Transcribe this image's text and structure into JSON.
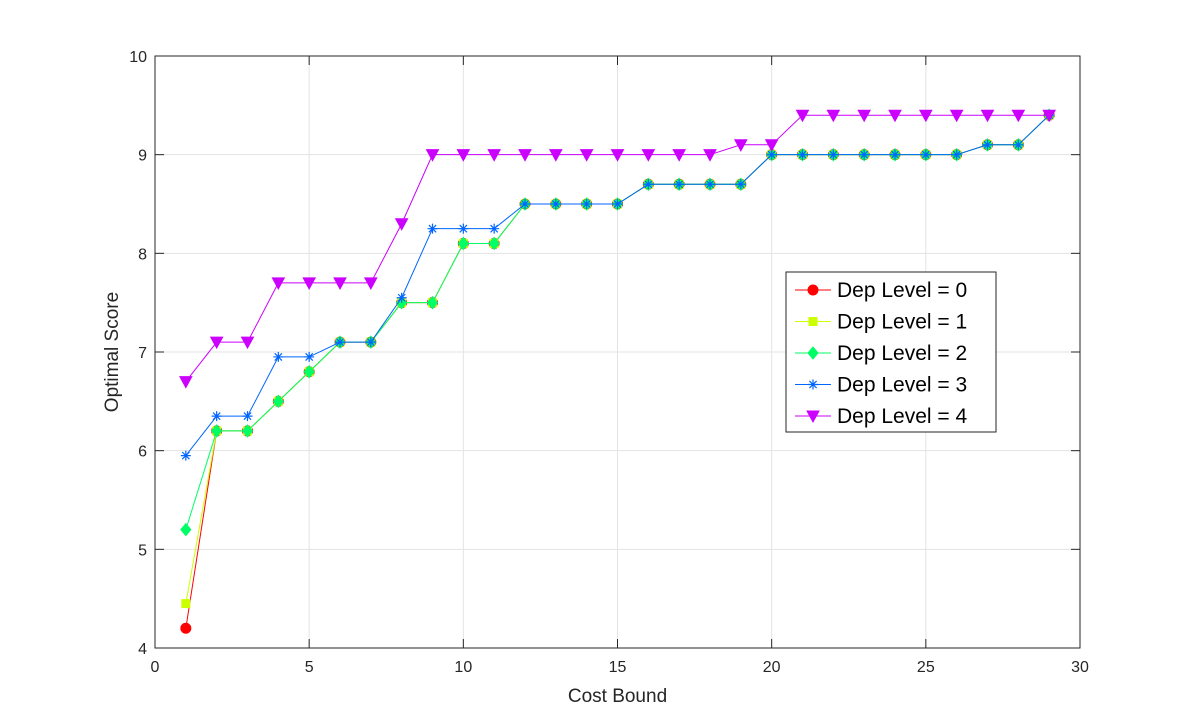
{
  "chart_data": {
    "type": "line",
    "xlabel": "Cost Bound",
    "ylabel": "Optimal Score",
    "xlim": [
      0,
      30
    ],
    "ylim": [
      4,
      10
    ],
    "xticks": [
      0,
      5,
      10,
      15,
      20,
      25,
      30
    ],
    "yticks": [
      4,
      5,
      6,
      7,
      8,
      9,
      10
    ],
    "xtick_labels": [
      "0",
      "5",
      "10",
      "15",
      "20",
      "25",
      "30"
    ],
    "ytick_labels": [
      "4",
      "5",
      "6",
      "7",
      "8",
      "9",
      "10"
    ],
    "grid": true,
    "legend_position": "right-center",
    "x": [
      1,
      2,
      3,
      4,
      5,
      6,
      7,
      8,
      9,
      10,
      11,
      12,
      13,
      14,
      15,
      16,
      17,
      18,
      19,
      20,
      21,
      22,
      23,
      24,
      25,
      26,
      27,
      28,
      29
    ],
    "series": [
      {
        "name": "Dep Level  = 0",
        "color": "#ff0000",
        "marker": "circle",
        "values": [
          4.2,
          6.2,
          6.2,
          6.5,
          6.8,
          7.1,
          7.1,
          7.5,
          7.5,
          8.1,
          8.1,
          8.5,
          8.5,
          8.5,
          8.5,
          8.7,
          8.7,
          8.7,
          8.7,
          9.0,
          9.0,
          9.0,
          9.0,
          9.0,
          9.0,
          9.0,
          9.1,
          9.1,
          9.4
        ]
      },
      {
        "name": "Dep Level  = 1",
        "color": "#ccff00",
        "marker": "square",
        "values": [
          4.45,
          6.2,
          6.2,
          6.5,
          6.8,
          7.1,
          7.1,
          7.5,
          7.5,
          8.1,
          8.1,
          8.5,
          8.5,
          8.5,
          8.5,
          8.7,
          8.7,
          8.7,
          8.7,
          9.0,
          9.0,
          9.0,
          9.0,
          9.0,
          9.0,
          9.0,
          9.1,
          9.1,
          9.4
        ]
      },
      {
        "name": "Dep Level  = 2",
        "color": "#00ff66",
        "marker": "diamond",
        "values": [
          5.2,
          6.2,
          6.2,
          6.5,
          6.8,
          7.1,
          7.1,
          7.5,
          7.5,
          8.1,
          8.1,
          8.5,
          8.5,
          8.5,
          8.5,
          8.7,
          8.7,
          8.7,
          8.7,
          9.0,
          9.0,
          9.0,
          9.0,
          9.0,
          9.0,
          9.0,
          9.1,
          9.1,
          9.4
        ]
      },
      {
        "name": "Dep Level  = 3",
        "color": "#0066ff",
        "marker": "asterisk",
        "values": [
          5.95,
          6.35,
          6.35,
          6.95,
          6.95,
          7.1,
          7.1,
          7.55,
          8.25,
          8.25,
          8.25,
          8.5,
          8.5,
          8.5,
          8.5,
          8.7,
          8.7,
          8.7,
          8.7,
          9.0,
          9.0,
          9.0,
          9.0,
          9.0,
          9.0,
          9.0,
          9.1,
          9.1,
          9.4
        ]
      },
      {
        "name": "Dep Level  = 4",
        "color": "#cc00ff",
        "marker": "triangle-down",
        "values": [
          6.7,
          7.1,
          7.1,
          7.7,
          7.7,
          7.7,
          7.7,
          8.3,
          9.0,
          9.0,
          9.0,
          9.0,
          9.0,
          9.0,
          9.0,
          9.0,
          9.0,
          9.0,
          9.1,
          9.1,
          9.4,
          9.4,
          9.4,
          9.4,
          9.4,
          9.4,
          9.4,
          9.4,
          9.4
        ]
      }
    ]
  }
}
